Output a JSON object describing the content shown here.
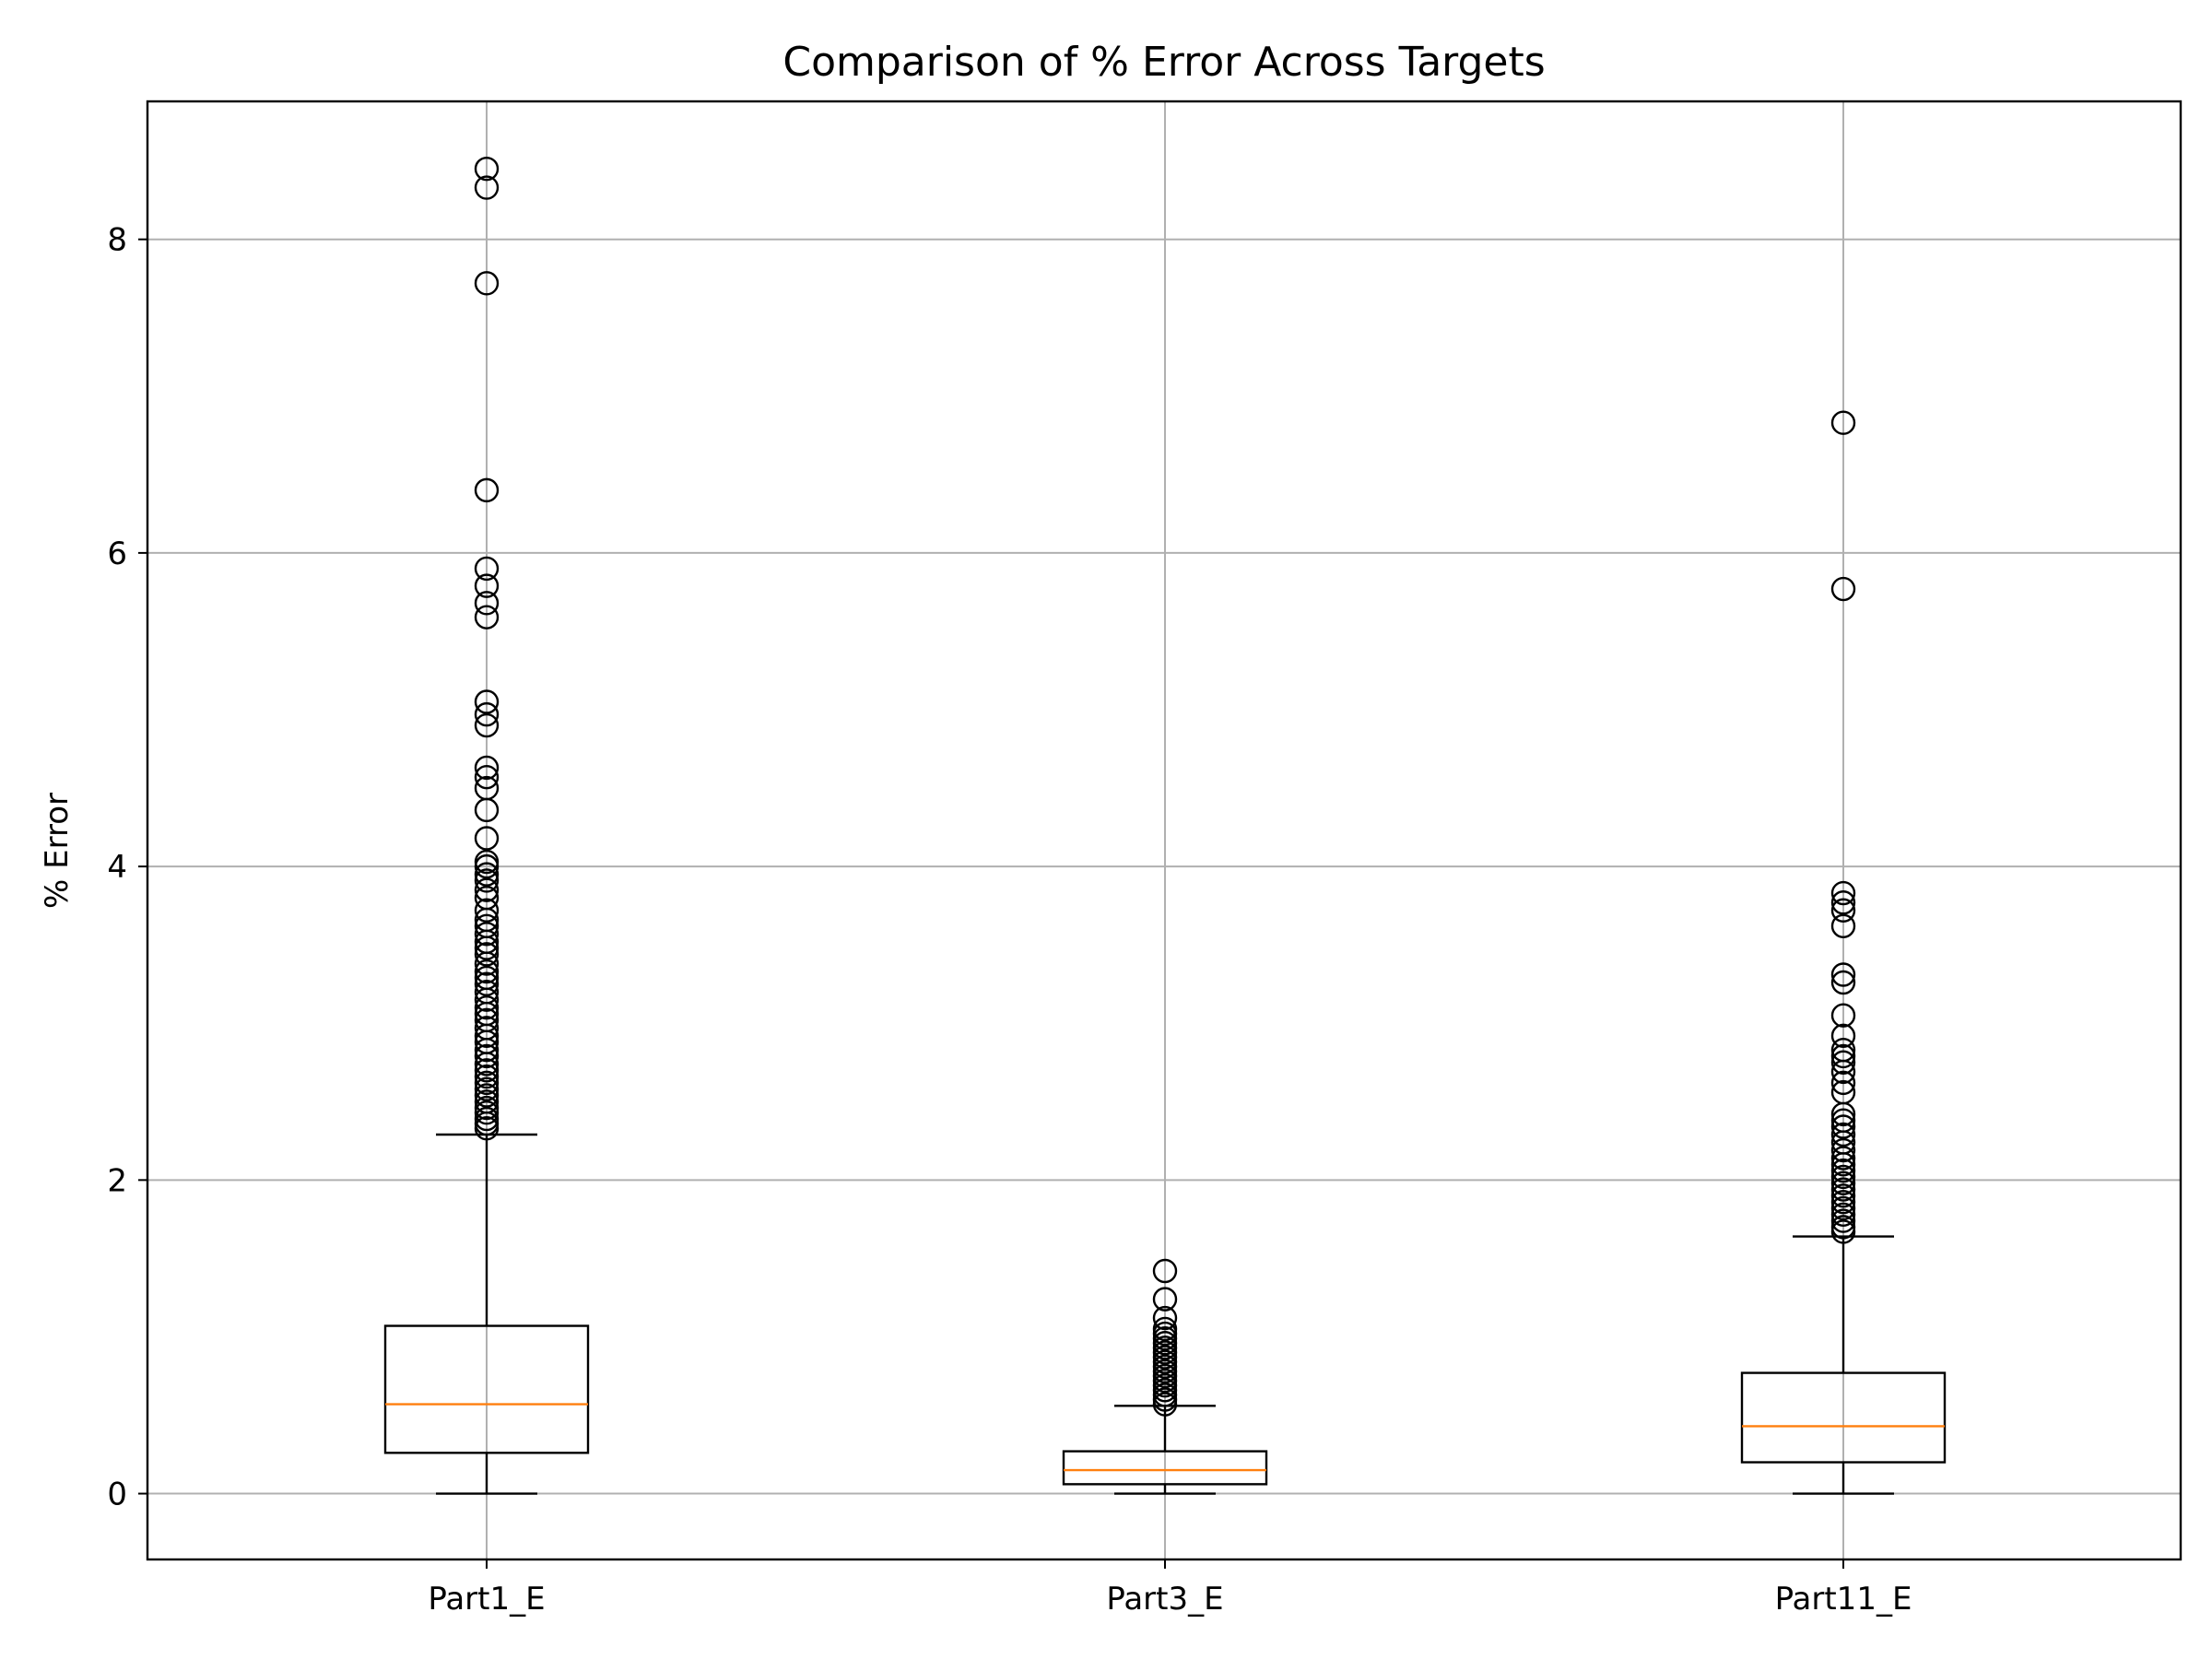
{
  "chart_data": {
    "type": "box",
    "title": "Comparison of % Error Across Targets",
    "xlabel": "",
    "ylabel": "% Error",
    "ylim": [
      -0.42,
      8.88
    ],
    "yticks": [
      0,
      2,
      4,
      6,
      8
    ],
    "grid": true,
    "categories": [
      "Part1_E",
      "Part3_E",
      "Part11_E"
    ],
    "colors": {
      "box": "#000000",
      "median": "#ff7f0e",
      "grid": "#b0b0b0",
      "flier": "#000000"
    },
    "boxes": [
      {
        "name": "Part1_E",
        "whisker_low": 0.0,
        "q1": 0.26,
        "median": 0.57,
        "q3": 1.07,
        "whisker_high": 2.29,
        "outliers": [
          8.45,
          8.33,
          7.72,
          6.4,
          5.9,
          5.79,
          5.68,
          5.59,
          5.05,
          4.97,
          4.9,
          4.63,
          4.57,
          4.5,
          4.36,
          4.18,
          4.03,
          4.0,
          3.95,
          3.91,
          3.85,
          3.8,
          3.72,
          3.66,
          3.62,
          3.57,
          3.52,
          3.48,
          3.44,
          3.38,
          3.33,
          3.29,
          3.25,
          3.2,
          3.15,
          3.1,
          3.06,
          3.02,
          2.97,
          2.92,
          2.88,
          2.83,
          2.79,
          2.74,
          2.7,
          2.66,
          2.62,
          2.58,
          2.54,
          2.5,
          2.46,
          2.43,
          2.39,
          2.36,
          2.33
        ]
      },
      {
        "name": "Part3_E",
        "whisker_low": 0.0,
        "q1": 0.06,
        "median": 0.15,
        "q3": 0.27,
        "whisker_high": 0.56,
        "outliers": [
          1.42,
          1.24,
          1.12,
          1.05,
          1.02,
          0.99,
          0.96,
          0.93,
          0.9,
          0.87,
          0.84,
          0.81,
          0.78,
          0.75,
          0.72,
          0.69,
          0.66,
          0.63,
          0.6,
          0.57
        ]
      },
      {
        "name": "Part11_E",
        "whisker_low": 0.0,
        "q1": 0.2,
        "median": 0.43,
        "q3": 0.77,
        "whisker_high": 1.64,
        "outliers": [
          6.83,
          5.77,
          3.83,
          3.77,
          3.72,
          3.62,
          3.31,
          3.26,
          3.05,
          2.92,
          2.83,
          2.79,
          2.75,
          2.69,
          2.62,
          2.56,
          2.42,
          2.38,
          2.34,
          2.29,
          2.24,
          2.19,
          2.14,
          2.1,
          2.06,
          2.02,
          1.98,
          1.94,
          1.9,
          1.86,
          1.82,
          1.78,
          1.74,
          1.7,
          1.67
        ]
      }
    ]
  }
}
